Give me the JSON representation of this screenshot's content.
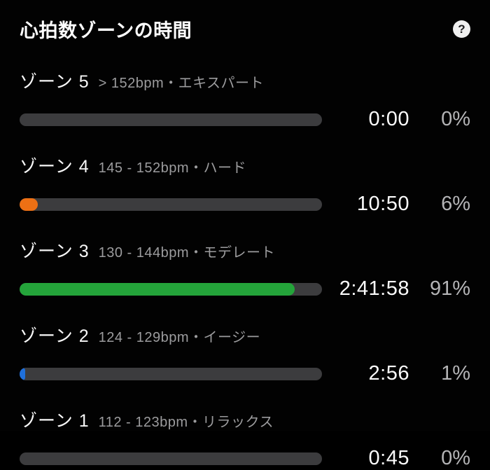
{
  "header": {
    "title": "心拍数ゾーンの時間",
    "help_label": "?"
  },
  "colors": {
    "background": "#020202",
    "track": "#3c3c3e",
    "zone4_fill": "#ed7014",
    "zone3_fill": "#24a43a",
    "zone2_fill": "#1f70dc"
  },
  "chart_data": {
    "type": "bar",
    "title": "心拍数ゾーンの時間",
    "categories": [
      "ゾーン 5",
      "ゾーン 4",
      "ゾーン 3",
      "ゾーン 2",
      "ゾーン 1"
    ],
    "values": [
      0,
      6,
      91,
      1,
      0
    ],
    "times": [
      "0:00",
      "10:50",
      "2:41:58",
      "2:56",
      "0:45"
    ],
    "ylim": [
      0,
      100
    ]
  },
  "zones": [
    {
      "name": "ゾーン 5",
      "range": "> 152bpm・エキスパート",
      "time": "0:00",
      "percent_label": "0%",
      "percent": 0,
      "fill_color": null
    },
    {
      "name": "ゾーン 4",
      "range": "145 - 152bpm・ハード",
      "time": "10:50",
      "percent_label": "6%",
      "percent": 6,
      "fill_color": "#ed7014"
    },
    {
      "name": "ゾーン 3",
      "range": "130 - 144bpm・モデレート",
      "time": "2:41:58",
      "percent_label": "91%",
      "percent": 91,
      "fill_color": "#24a43a"
    },
    {
      "name": "ゾーン 2",
      "range": "124 - 129bpm・イージー",
      "time": "2:56",
      "percent_label": "1%",
      "percent": 1,
      "fill_color": "#1f70dc"
    },
    {
      "name": "ゾーン 1",
      "range": "112 - 123bpm・リラックス",
      "time": "0:45",
      "percent_label": "0%",
      "percent": 0,
      "fill_color": null
    }
  ]
}
